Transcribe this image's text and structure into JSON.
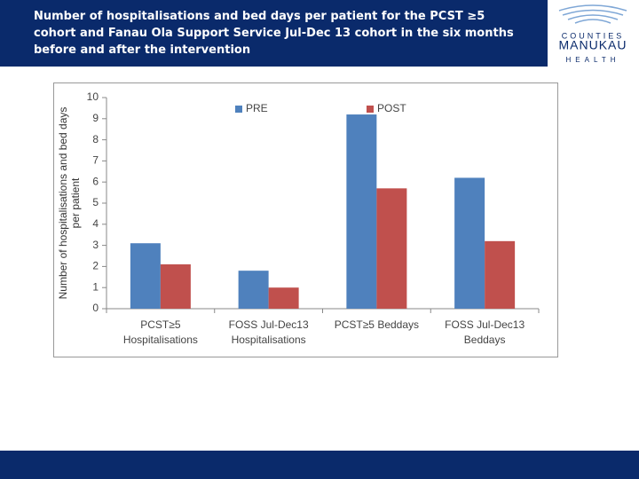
{
  "chart_data": {
    "type": "bar",
    "title": "Number of hospitalisations and bed days per patient for the PCST ≥5 cohort and Fanau Ola Support Service Jul-Dec 13 cohort in the six months before and after the intervention",
    "ylabel": [
      "Number of hospitalisations and  bed days",
      "per patient"
    ],
    "categories": [
      [
        "PCST≥5",
        "Hospitalisations"
      ],
      [
        "FOSS Jul-Dec13",
        "Hospitalisations"
      ],
      [
        "PCST≥5  Beddays"
      ],
      [
        "FOSS Jul-Dec13",
        "Beddays"
      ]
    ],
    "series": [
      {
        "name": "PRE",
        "color": "#4f81bd",
        "values": [
          3.1,
          1.8,
          9.2,
          6.2
        ]
      },
      {
        "name": "POST",
        "color": "#c0504d",
        "values": [
          2.1,
          1.0,
          5.7,
          3.2
        ]
      }
    ],
    "ylim": [
      0,
      10
    ],
    "yticks": [
      0,
      1,
      2,
      3,
      4,
      5,
      6,
      7,
      8,
      9,
      10
    ],
    "legend": "top"
  },
  "logo": {
    "lines": [
      "COUNTIES",
      "MANUKAU",
      "HEALTH"
    ]
  }
}
